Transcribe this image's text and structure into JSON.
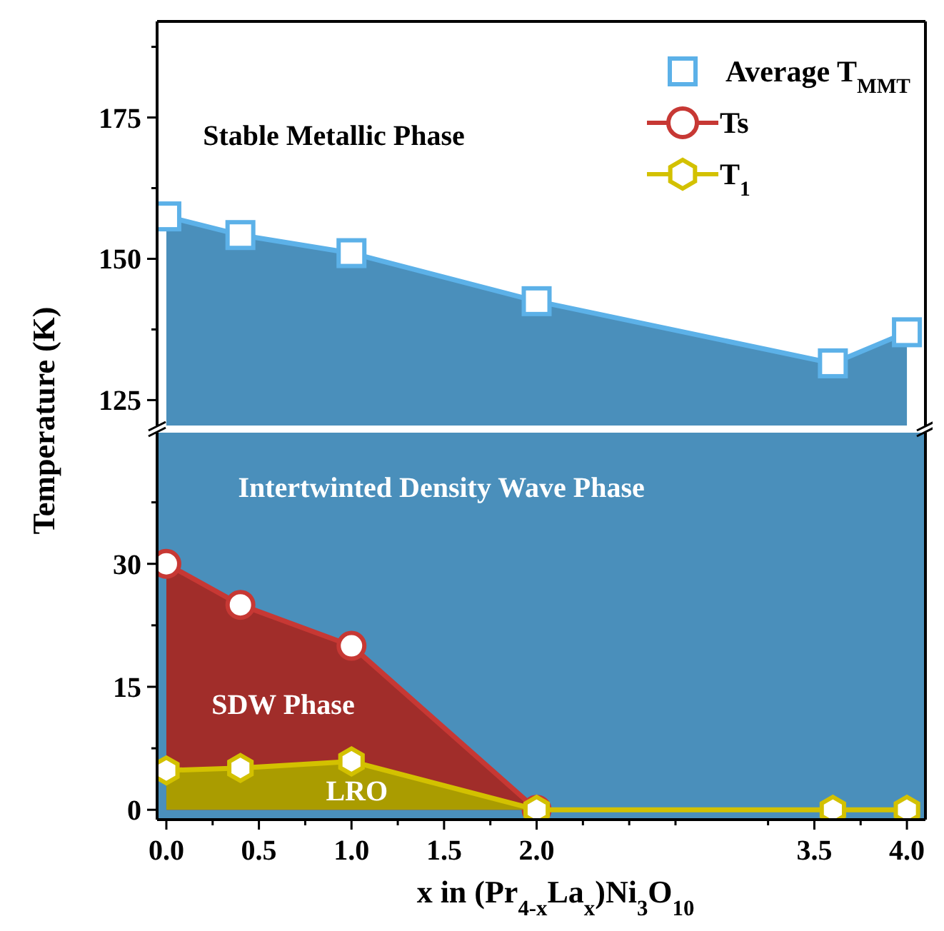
{
  "chart_data": [
    {
      "type": "area",
      "xlim": [
        -0.05,
        4.1
      ],
      "ylim": [
        120.5,
        192
      ],
      "tick_labels": "y",
      "yticks": [
        125,
        {
          "value": 137.5,
          "label": null
        },
        150,
        {
          "value": 162.5,
          "label": null
        },
        175,
        {
          "value": 187.5,
          "label": null
        }
      ],
      "x": [
        0,
        0.4,
        1,
        2,
        3.6,
        4
      ],
      "series": [
        {
          "name": "Average T$_{MMT}$",
          "color": "#4a8fbb",
          "marker": "square",
          "values": [
            157.5,
            154.2,
            151,
            142.5,
            131.5,
            137
          ]
        }
      ],
      "annotations": [
        "Stable Metallic Phase"
      ],
      "legend": "top right"
    },
    {
      "type": "area",
      "xlabel": "x in (Pr$_{4-x}$La$_{x}$)Ni$_{3}$O$_{10}$",
      "ylabel": "Temperature (K)",
      "xlim": [
        -0.05,
        4.1
      ],
      "ylim": [
        -1.2,
        46
      ],
      "xticks": [
        {
          "value": 0,
          "label": "0.0"
        },
        {
          "value": 0.25,
          "label": null
        },
        {
          "value": 0.5,
          "label": "0.5"
        },
        {
          "value": 0.75,
          "label": null
        },
        {
          "value": 1,
          "label": "1.0"
        },
        {
          "value": 1.25,
          "label": null
        },
        {
          "value": 1.5,
          "label": "1.5"
        },
        {
          "value": 1.75,
          "label": null
        },
        {
          "value": 2,
          "label": "2.0"
        },
        {
          "value": 2.25,
          "label": null
        },
        {
          "value": 2.5,
          "label": null
        },
        {
          "value": 2.75,
          "label": null
        },
        {
          "value": 3.25,
          "label": null
        },
        {
          "value": 3.5,
          "label": "3.5"
        },
        {
          "value": 3.75,
          "label": null
        },
        {
          "value": 4,
          "label": "4.0"
        }
      ],
      "yticks": [
        0,
        {
          "value": 7.5,
          "label": null
        },
        15,
        {
          "value": 22.5,
          "label": null
        },
        30,
        {
          "value": 37.5,
          "label": null
        }
      ],
      "x": [
        0,
        0.4,
        1,
        2,
        3.6,
        4
      ],
      "series": [
        {
          "name": "Ts",
          "color": "#a12d2a",
          "marker": "circle",
          "x": [
            0,
            0.4,
            1,
            2
          ],
          "values": [
            30,
            25,
            20,
            0
          ]
        },
        {
          "name": "T$_{1}$",
          "color": "#aa9c00",
          "values": [
            4.8,
            5.1,
            5.9,
            0,
            0,
            0
          ]
        }
      ],
      "bands": [
        {
          "axis": "y",
          "from": -1.2,
          "to": 46,
          "label": "Intertwinted Density Wave Phase",
          "color": "#4a8fbb"
        }
      ],
      "annotations": [
        "SDW Phase",
        "LRO"
      ],
      "legend": "top right"
    }
  ]
}
